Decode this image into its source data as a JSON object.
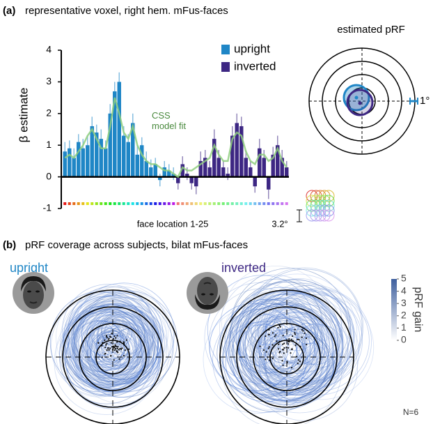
{
  "panel_a": {
    "label": "(a)",
    "title": "representative voxel, right hem. mFus-faces"
  },
  "chart_data": [
    {
      "type": "bar",
      "ylabel": "β estimate",
      "xlabel": "face location 1-25",
      "ylim": [
        -1,
        4
      ],
      "yticks": [
        -1,
        0,
        1,
        2,
        3,
        4
      ],
      "series": [
        {
          "name": "upright",
          "color": "#1f86c6",
          "values": [
            0.8,
            0.9,
            0.6,
            1.1,
            0.9,
            1.0,
            1.6,
            1.4,
            1.2,
            0.9,
            2.0,
            2.7,
            3.0,
            1.3,
            1.1,
            1.7,
            0.7,
            1.0,
            0.5,
            0.3,
            0.4,
            -0.1,
            0.3,
            0.2,
            0.1
          ],
          "errors": [
            0.3,
            0.25,
            0.3,
            0.25,
            0.3,
            0.3,
            0.3,
            0.25,
            0.3,
            0.25,
            0.3,
            0.3,
            0.3,
            0.3,
            0.25,
            0.3,
            0.3,
            0.25,
            0.3,
            0.25,
            0.2,
            0.2,
            0.2,
            0.2,
            0.2
          ]
        },
        {
          "name": "inverted",
          "color": "#3d2783",
          "values": [
            -0.2,
            0.4,
            0.1,
            -0.2,
            -0.3,
            0.5,
            0.6,
            0.3,
            1.2,
            0.6,
            0.3,
            0.1,
            1.3,
            1.7,
            1.6,
            0.6,
            0.3,
            -0.3,
            0.9,
            0.6,
            -0.4,
            0.7,
            1.0,
            0.6,
            0.3
          ],
          "errors": [
            0.2,
            0.25,
            0.2,
            0.2,
            0.25,
            0.3,
            0.25,
            0.2,
            0.3,
            0.25,
            0.2,
            0.2,
            0.3,
            0.3,
            0.3,
            0.25,
            0.2,
            0.2,
            0.3,
            0.25,
            0.3,
            0.25,
            0.3,
            0.25,
            0.2
          ]
        },
        {
          "name": "CSS model fit",
          "color": "#8fcf7f",
          "type": "line",
          "values": [
            0.6,
            0.7,
            0.6,
            0.8,
            1.0,
            1.3,
            1.5,
            1.2,
            0.9,
            0.9,
            1.6,
            2.5,
            2.0,
            1.4,
            1.2,
            1.6,
            1.0,
            0.7,
            0.5,
            0.4,
            0.4,
            0.3,
            0.2,
            0.2,
            0.1,
            0.0,
            0.3,
            0.2,
            0.2,
            0.3,
            0.4,
            0.5,
            0.6,
            1.0,
            0.7,
            0.5,
            0.5,
            1.2,
            1.4,
            1.3,
            0.8,
            0.5,
            0.4,
            0.7,
            0.7,
            0.5,
            0.6,
            0.9,
            0.5,
            0.3
          ]
        }
      ],
      "scale_label": "3.2°"
    },
    {
      "type": "prf",
      "title": "estimated pRF",
      "scale_label": "1°"
    }
  ],
  "panel_b": {
    "label": "(b)",
    "title": "pRF coverage across subjects, bilat mFus-faces",
    "plots": [
      {
        "title": "upright",
        "color": "#1f86c6"
      },
      {
        "title": "inverted",
        "color": "#3d2783"
      }
    ],
    "colorbar": {
      "label": "pRF gain",
      "lim": [
        0,
        5
      ],
      "ticks": [
        0,
        1,
        2,
        3,
        4,
        5
      ]
    },
    "note": "N=6"
  }
}
